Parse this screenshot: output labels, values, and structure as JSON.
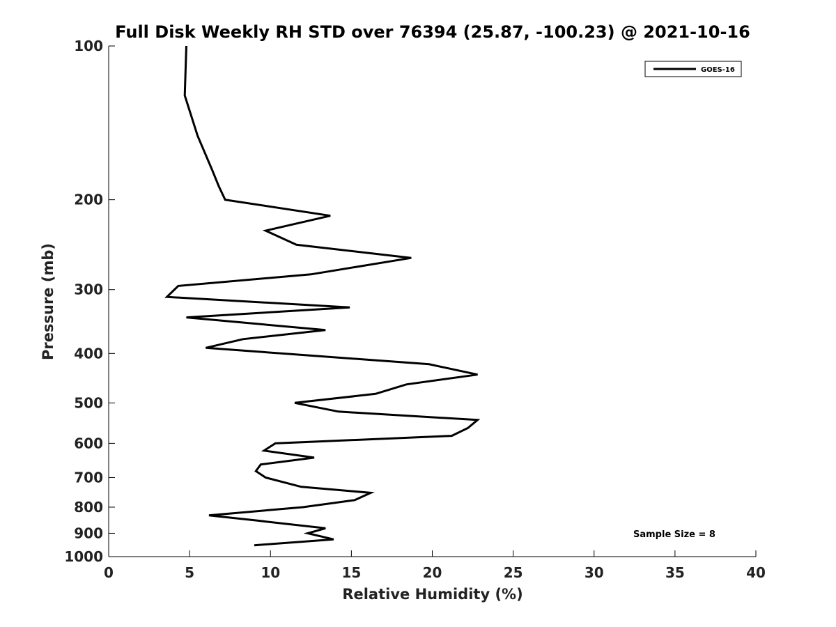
{
  "chart_data": {
    "type": "line",
    "title": "Full Disk Weekly RH STD over 76394 (25.87, -100.23) @ 2021-10-16",
    "xlabel": "Relative Humidity (%)",
    "ylabel": "Pressure (mb)",
    "xlim": [
      0,
      40
    ],
    "ylim": [
      1000,
      100
    ],
    "y_scale": "log",
    "x_ticks": [
      "0",
      "5",
      "10",
      "15",
      "20",
      "25",
      "30",
      "35",
      "40"
    ],
    "y_ticks": [
      "100",
      "200",
      "300",
      "400",
      "500",
      "600",
      "700",
      "800",
      "900",
      "1000"
    ],
    "grid": false,
    "legend_position": "top-right",
    "series": [
      {
        "name": "GOES-16",
        "color": "#000000",
        "points": [
          [
            4.8,
            100
          ],
          [
            4.7,
            125
          ],
          [
            5.5,
            150
          ],
          [
            6.4,
            175
          ],
          [
            6.8,
            188
          ],
          [
            7.2,
            200
          ],
          [
            13.7,
            215
          ],
          [
            9.7,
            230
          ],
          [
            11.6,
            245
          ],
          [
            18.7,
            260
          ],
          [
            12.5,
            280
          ],
          [
            4.3,
            295
          ],
          [
            3.6,
            310
          ],
          [
            14.9,
            325
          ],
          [
            4.8,
            340
          ],
          [
            13.4,
            360
          ],
          [
            8.3,
            375
          ],
          [
            6.0,
            390
          ],
          [
            19.8,
            420
          ],
          [
            22.8,
            440
          ],
          [
            18.4,
            460
          ],
          [
            16.5,
            480
          ],
          [
            11.5,
            500
          ],
          [
            14.2,
            520
          ],
          [
            22.8,
            540
          ],
          [
            22.2,
            560
          ],
          [
            21.2,
            580
          ],
          [
            10.3,
            600
          ],
          [
            9.6,
            620
          ],
          [
            12.7,
            640
          ],
          [
            9.4,
            660
          ],
          [
            9.1,
            680
          ],
          [
            9.7,
            700
          ],
          [
            11.9,
            730
          ],
          [
            16.2,
            750
          ],
          [
            15.2,
            775
          ],
          [
            12.0,
            800
          ],
          [
            6.2,
            830
          ],
          [
            9.2,
            850
          ],
          [
            13.4,
            880
          ],
          [
            12.3,
            900
          ],
          [
            13.9,
            925
          ],
          [
            9.0,
            950
          ]
        ]
      }
    ],
    "annotations": [
      "Sample Size = 8"
    ]
  }
}
